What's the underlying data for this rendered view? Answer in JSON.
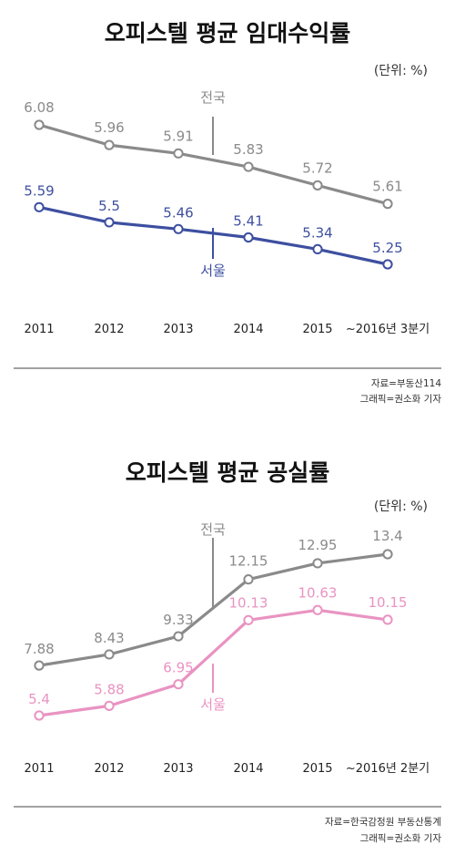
{
  "chart_data": [
    {
      "type": "line",
      "title": "오피스텔 평균 임대수익률",
      "unit_label": "(단위: %)",
      "categories": [
        "2011",
        "2012",
        "2013",
        "2014",
        "2015",
        "~2016년 3분기"
      ],
      "series": [
        {
          "name": "전국",
          "values": [
            6.08,
            5.96,
            5.91,
            5.83,
            5.72,
            5.61
          ],
          "value_labels": [
            "6.08",
            "5.96",
            "5.91",
            "5.83",
            "5.72",
            "5.61"
          ],
          "color": "#8a8a8a"
        },
        {
          "name": "서울",
          "values": [
            5.59,
            5.5,
            5.46,
            5.41,
            5.34,
            5.25
          ],
          "value_labels": [
            "5.59",
            "5.5",
            "5.46",
            "5.41",
            "5.34",
            "5.25"
          ],
          "color": "#3d4fa0"
        }
      ],
      "ylim": [
        4.8,
        6.3
      ],
      "grid": false,
      "source": "자료=부동산114",
      "credit": "그래픽=권소화 기자"
    },
    {
      "type": "line",
      "title": "오피스텔 평균 공실률",
      "unit_label": "(단위: %)",
      "categories": [
        "2011",
        "2012",
        "2013",
        "2014",
        "2015",
        "~2016년 2분기"
      ],
      "series": [
        {
          "name": "전국",
          "values": [
            7.88,
            8.43,
            9.33,
            12.15,
            12.95,
            13.4
          ],
          "value_labels": [
            "7.88",
            "8.43",
            "9.33",
            "12.15",
            "12.95",
            "13.4"
          ],
          "color": "#8a8a8a"
        },
        {
          "name": "서울",
          "values": [
            5.4,
            5.88,
            6.95,
            10.13,
            10.63,
            10.15
          ],
          "value_labels": [
            "5.4",
            "5.88",
            "6.95",
            "10.13",
            "10.63",
            "10.15"
          ],
          "color": "#e993c2"
        }
      ],
      "ylim": [
        4,
        15
      ],
      "grid": false,
      "source": "자료=한국감정원 부동산통계",
      "credit": "그래픽=권소화 기자"
    }
  ]
}
